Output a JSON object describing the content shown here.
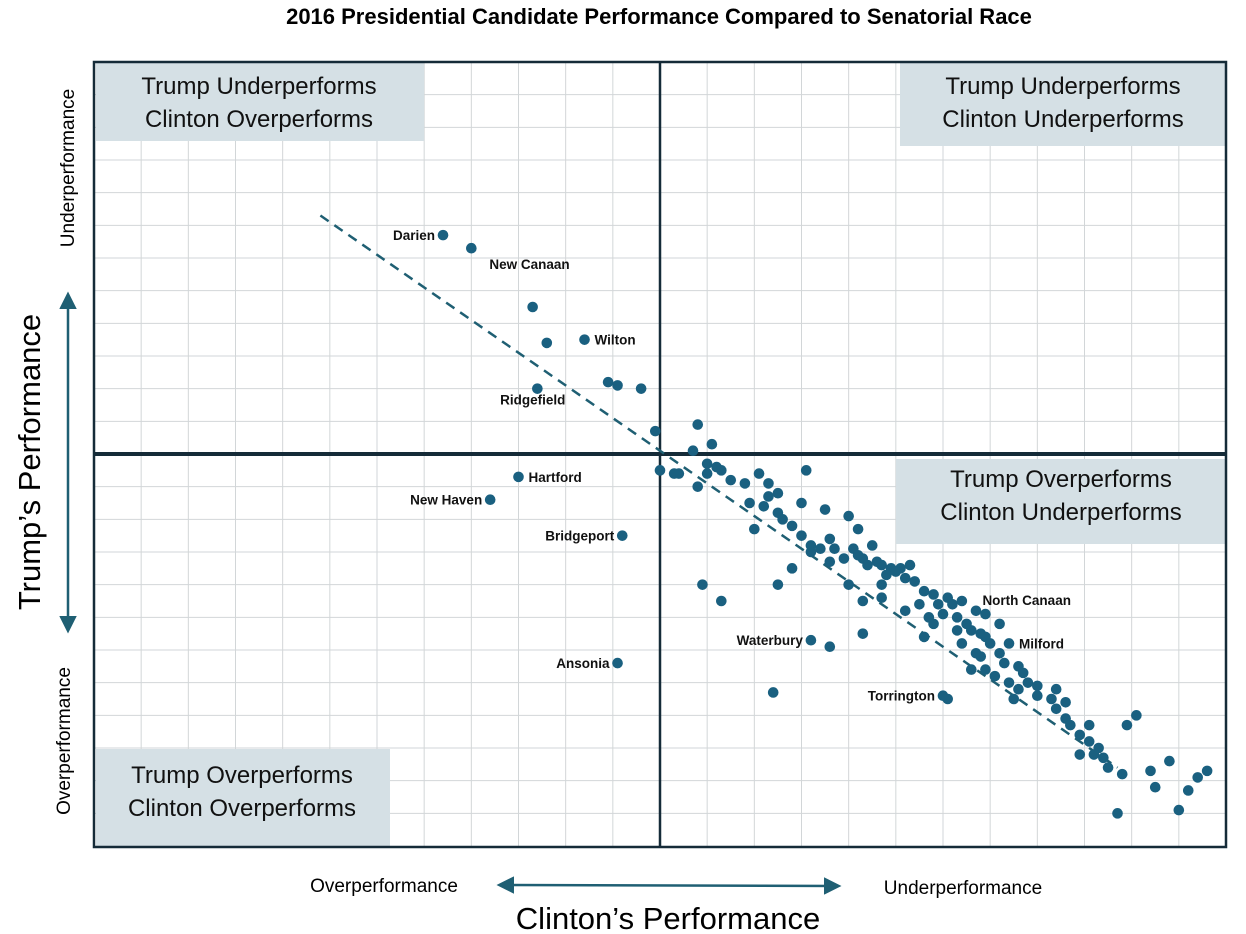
{
  "chart_data": {
    "type": "scatter",
    "title": "2016 Presidential Candidate Performance Compared to Senatorial Race",
    "xlabel": "Clinton’s Performance",
    "ylabel": "Trump’s Performance",
    "x_axis_ends": {
      "left": "Overperformance",
      "right": "Underperformance"
    },
    "y_axis_ends": {
      "top": "Underperformance",
      "bottom": "Overperformance"
    },
    "xlim": [
      -12,
      12
    ],
    "ylim": [
      -12,
      12
    ],
    "grid": true,
    "quadrants": {
      "top_left": [
        "Trump Underperforms",
        "Clinton Overperforms"
      ],
      "top_right": [
        "Trump Underperforms",
        "Clinton Underperforms"
      ],
      "bottom_right": [
        "Trump Overperforms",
        "Clinton Underperforms"
      ],
      "bottom_left": [
        "Trump Overperforms",
        "Clinton Overperforms"
      ]
    },
    "trendline": {
      "style": "dashed",
      "color": "#1f5f73",
      "x": [
        -7.2,
        9.7
      ],
      "y": [
        7.3,
        -9.6
      ]
    },
    "marker_color": "#1a6080",
    "labeled_points": [
      {
        "name": "Darien",
        "x": -4.6,
        "y": 6.7
      },
      {
        "name": "New Canaan",
        "x": -4.0,
        "y": 6.3
      },
      {
        "name": "Wilton",
        "x": -1.6,
        "y": 3.5
      },
      {
        "name": "Ridgefield",
        "x": -2.6,
        "y": 2.0
      },
      {
        "name": "Hartford",
        "x": -3.0,
        "y": -0.7
      },
      {
        "name": "New Haven",
        "x": -3.6,
        "y": -1.4
      },
      {
        "name": "Bridgeport",
        "x": -0.8,
        "y": -2.5
      },
      {
        "name": "Waterbury",
        "x": 3.2,
        "y": -5.7
      },
      {
        "name": "Ansonia",
        "x": -0.9,
        "y": -6.4
      },
      {
        "name": "North Canaan",
        "x": 6.9,
        "y": -4.9
      },
      {
        "name": "Milford",
        "x": 7.4,
        "y": -5.8
      },
      {
        "name": "Torrington",
        "x": 6.0,
        "y": -7.4
      }
    ],
    "points": [
      [
        -2.7,
        4.5
      ],
      [
        -2.4,
        3.4
      ],
      [
        -1.1,
        2.2
      ],
      [
        -0.9,
        2.1
      ],
      [
        -0.4,
        2.0
      ],
      [
        -0.1,
        0.7
      ],
      [
        0.0,
        -0.5
      ],
      [
        0.4,
        -0.6
      ],
      [
        0.7,
        0.1
      ],
      [
        0.8,
        0.9
      ],
      [
        1.1,
        0.3
      ],
      [
        1.0,
        -0.3
      ],
      [
        1.2,
        -0.4
      ],
      [
        1.3,
        -0.5
      ],
      [
        1.0,
        -0.6
      ],
      [
        1.5,
        -0.8
      ],
      [
        1.8,
        -0.9
      ],
      [
        2.1,
        -0.6
      ],
      [
        2.3,
        -0.9
      ],
      [
        2.5,
        -1.2
      ],
      [
        2.3,
        -1.3
      ],
      [
        2.2,
        -1.6
      ],
      [
        1.9,
        -1.5
      ],
      [
        3.1,
        -0.5
      ],
      [
        3.0,
        -1.5
      ],
      [
        2.5,
        -1.8
      ],
      [
        2.6,
        -2.0
      ],
      [
        2.8,
        -2.2
      ],
      [
        3.0,
        -2.5
      ],
      [
        3.2,
        -2.8
      ],
      [
        3.4,
        -2.9
      ],
      [
        3.6,
        -2.6
      ],
      [
        3.2,
        -3.0
      ],
      [
        3.7,
        -2.9
      ],
      [
        3.9,
        -3.2
      ],
      [
        4.1,
        -2.9
      ],
      [
        4.2,
        -3.1
      ],
      [
        4.3,
        -3.2
      ],
      [
        4.5,
        -2.8
      ],
      [
        4.4,
        -3.4
      ],
      [
        4.6,
        -3.3
      ],
      [
        4.7,
        -3.4
      ],
      [
        4.9,
        -3.5
      ],
      [
        5.1,
        -3.5
      ],
      [
        5.3,
        -3.4
      ],
      [
        5.0,
        -3.6
      ],
      [
        4.8,
        -3.7
      ],
      [
        5.2,
        -3.8
      ],
      [
        4.7,
        -4.0
      ],
      [
        5.6,
        -4.2
      ],
      [
        5.4,
        -3.9
      ],
      [
        5.8,
        -4.3
      ],
      [
        6.1,
        -4.4
      ],
      [
        5.9,
        -4.6
      ],
      [
        6.2,
        -4.6
      ],
      [
        6.4,
        -4.5
      ],
      [
        6.0,
        -4.9
      ],
      [
        6.3,
        -5.0
      ],
      [
        6.5,
        -5.2
      ],
      [
        5.7,
        -5.0
      ],
      [
        6.6,
        -5.4
      ],
      [
        6.9,
        -5.6
      ],
      [
        7.0,
        -5.8
      ],
      [
        7.2,
        -6.1
      ],
      [
        6.8,
        -6.2
      ],
      [
        7.3,
        -6.4
      ],
      [
        7.6,
        -6.5
      ],
      [
        7.1,
        -6.8
      ],
      [
        7.4,
        -7.0
      ],
      [
        7.6,
        -7.2
      ],
      [
        7.8,
        -7.0
      ],
      [
        8.0,
        -7.1
      ],
      [
        7.5,
        -7.5
      ],
      [
        8.3,
        -7.5
      ],
      [
        8.4,
        -7.8
      ],
      [
        8.6,
        -8.1
      ],
      [
        8.7,
        -8.3
      ],
      [
        8.9,
        -8.6
      ],
      [
        9.1,
        -8.8
      ],
      [
        9.2,
        -9.2
      ],
      [
        9.4,
        -9.3
      ],
      [
        9.5,
        -9.6
      ],
      [
        9.8,
        -9.8
      ],
      [
        10.4,
        -9.7
      ],
      [
        10.5,
        -10.2
      ],
      [
        11.2,
        -10.3
      ],
      [
        11.4,
        -9.9
      ],
      [
        11.6,
        -9.7
      ],
      [
        11.0,
        -10.9
      ],
      [
        9.7,
        -11.0
      ],
      [
        8.9,
        -9.2
      ],
      [
        9.3,
        -9.0
      ],
      [
        9.9,
        -8.3
      ],
      [
        10.8,
        -9.4
      ],
      [
        10.1,
        -8.0
      ],
      [
        8.6,
        -7.6
      ],
      [
        8.0,
        -7.4
      ],
      [
        0.3,
        -0.6
      ],
      [
        0.8,
        -1.0
      ],
      [
        3.5,
        -1.7
      ],
      [
        4.0,
        -1.9
      ],
      [
        4.2,
        -2.3
      ],
      [
        3.6,
        -3.3
      ],
      [
        2.8,
        -3.5
      ],
      [
        2.5,
        -4.0
      ],
      [
        4.0,
        -4.0
      ],
      [
        4.3,
        -4.5
      ],
      [
        4.7,
        -4.4
      ],
      [
        2.0,
        -2.3
      ],
      [
        0.9,
        -4.0
      ],
      [
        1.3,
        -4.5
      ],
      [
        5.2,
        -4.8
      ],
      [
        5.6,
        -5.6
      ],
      [
        6.4,
        -5.8
      ],
      [
        6.7,
        -6.1
      ],
      [
        6.9,
        -6.6
      ],
      [
        7.7,
        -6.7
      ],
      [
        8.4,
        -7.2
      ],
      [
        9.1,
        -8.3
      ],
      [
        6.1,
        -7.5
      ],
      [
        6.6,
        -6.6
      ],
      [
        4.3,
        -5.5
      ],
      [
        3.6,
        -5.9
      ],
      [
        2.4,
        -7.3
      ],
      [
        6.7,
        -4.8
      ],
      [
        5.5,
        -4.6
      ],
      [
        6.8,
        -5.5
      ],
      [
        7.2,
        -5.2
      ],
      [
        5.8,
        -5.2
      ],
      [
        6.3,
        -5.4
      ]
    ]
  }
}
